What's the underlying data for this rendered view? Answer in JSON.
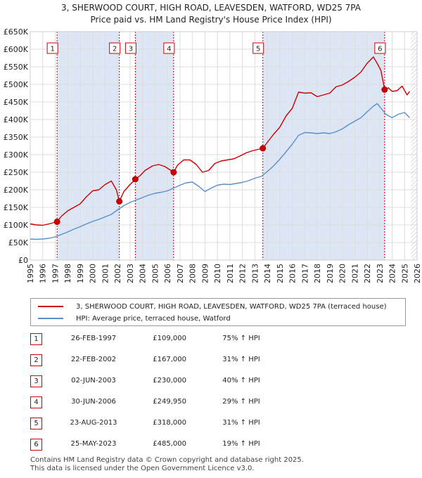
{
  "title_line1": "3, SHERWOOD COURT, HIGH ROAD, LEAVESDEN, WATFORD, WD25 7PA",
  "title_line2": "Price paid vs. HM Land Registry's House Price Index (HPI)",
  "colors": {
    "property": "#cc0000",
    "hpi": "#5b8fc9",
    "band": "#dde6f5",
    "grid": "#dddddd",
    "marker_border": "#cc0000"
  },
  "chart_data": {
    "type": "line",
    "title": "Price paid vs. HM Land Registry's House Price Index (HPI)",
    "xlabel": "",
    "ylabel": "",
    "xlim": [
      1995,
      2026
    ],
    "ylim": [
      0,
      650000
    ],
    "y_ticks": [
      0,
      50000,
      100000,
      150000,
      200000,
      250000,
      300000,
      350000,
      400000,
      450000,
      500000,
      550000,
      600000,
      650000
    ],
    "y_tick_labels": [
      "£0",
      "£50K",
      "£100K",
      "£150K",
      "£200K",
      "£250K",
      "£300K",
      "£350K",
      "£400K",
      "£450K",
      "£500K",
      "£550K",
      "£600K",
      "£650K"
    ],
    "x_ticks": [
      1995,
      1996,
      1997,
      1998,
      1999,
      2000,
      2001,
      2002,
      2003,
      2004,
      2005,
      2006,
      2007,
      2008,
      2009,
      2010,
      2011,
      2012,
      2013,
      2014,
      2015,
      2016,
      2017,
      2018,
      2019,
      2020,
      2021,
      2022,
      2023,
      2024,
      2025,
      2026
    ],
    "x_tick_labels": [
      "1995",
      "1996",
      "1997",
      "1998",
      "1999",
      "2000",
      "2001",
      "2002",
      "2003",
      "2004",
      "2005",
      "2006",
      "2007",
      "2008",
      "2009",
      "2010",
      "2011",
      "2012",
      "2013",
      "2014",
      "2015",
      "2016",
      "2017",
      "2018",
      "2019",
      "2020",
      "2021",
      "2022",
      "2023",
      "2024",
      "2025",
      "2026"
    ],
    "shaded_bands": [
      [
        1997.15,
        2002.14
      ],
      [
        2003.42,
        2006.49
      ],
      [
        2013.64,
        2023.4
      ]
    ],
    "hatched_region": [
      2025.5,
      2026
    ],
    "series": [
      {
        "name": "3, SHERWOOD COURT, HIGH ROAD, LEAVESDEN, WATFORD, WD25 7PA (terraced house)",
        "color": "#cc0000",
        "x": [
          1995,
          1995.5,
          1996,
          1996.5,
          1997.15,
          1997.5,
          1998,
          1998.5,
          1999,
          1999.5,
          2000,
          2000.5,
          2001,
          2001.5,
          2001.9,
          2002.14,
          2002.5,
          2003,
          2003.42,
          2003.8,
          2004.2,
          2004.8,
          2005.3,
          2005.8,
          2006.49,
          2006.8,
          2007.3,
          2007.8,
          2008.3,
          2008.8,
          2009.3,
          2009.8,
          2010.3,
          2010.8,
          2011.3,
          2011.8,
          2012.3,
          2012.8,
          2013.64,
          2014,
          2014.5,
          2015,
          2015.5,
          2016,
          2016.5,
          2017,
          2017.5,
          2018,
          2018.5,
          2019,
          2019.5,
          2020,
          2020.5,
          2021,
          2021.5,
          2022,
          2022.5,
          2022.8,
          2023.1,
          2023.4,
          2023.7,
          2024,
          2024.4,
          2024.8,
          2025.2,
          2025.4
        ],
        "y": [
          103000,
          100000,
          99000,
          103000,
          109000,
          125000,
          140000,
          150000,
          160000,
          180000,
          197000,
          200000,
          215000,
          225000,
          200000,
          167000,
          195000,
          215000,
          230000,
          240000,
          255000,
          268000,
          272000,
          266000,
          249950,
          270000,
          285000,
          285000,
          272000,
          250000,
          255000,
          275000,
          282000,
          285000,
          288000,
          296000,
          305000,
          311000,
          318000,
          335000,
          358000,
          378000,
          410000,
          432000,
          478000,
          475000,
          476000,
          465000,
          470000,
          475000,
          493000,
          498000,
          508000,
          520000,
          535000,
          560000,
          578000,
          560000,
          540000,
          485000,
          490000,
          480000,
          482000,
          495000,
          470000,
          480000
        ]
      },
      {
        "name": "HPI: Average price, terraced house, Watford",
        "color": "#5b8fc9",
        "x": [
          1995,
          1995.5,
          1996,
          1996.5,
          1997,
          1997.5,
          1998,
          1998.5,
          1999,
          1999.5,
          2000,
          2000.5,
          2001,
          2001.5,
          2002,
          2002.5,
          2003,
          2003.5,
          2004,
          2004.5,
          2005,
          2005.5,
          2006,
          2006.5,
          2007,
          2007.5,
          2008,
          2008.5,
          2009,
          2009.5,
          2010,
          2010.5,
          2011,
          2011.5,
          2012,
          2012.5,
          2013,
          2013.5,
          2014,
          2014.5,
          2015,
          2015.5,
          2016,
          2016.5,
          2017,
          2017.5,
          2018,
          2018.5,
          2019,
          2019.5,
          2020,
          2020.5,
          2021,
          2021.5,
          2022,
          2022.5,
          2022.8,
          2023,
          2023.5,
          2024,
          2024.5,
          2025,
          2025.4
        ],
        "y": [
          60000,
          59000,
          60000,
          62000,
          66000,
          73000,
          80000,
          88000,
          95000,
          103000,
          110000,
          116000,
          123000,
          130000,
          143000,
          155000,
          164000,
          171000,
          178000,
          185000,
          190000,
          193000,
          197000,
          205000,
          213000,
          220000,
          222000,
          210000,
          195000,
          205000,
          213000,
          216000,
          215000,
          218000,
          221000,
          226000,
          233000,
          238000,
          252000,
          268000,
          287000,
          308000,
          330000,
          355000,
          363000,
          362000,
          360000,
          362000,
          360000,
          365000,
          373000,
          385000,
          395000,
          405000,
          422000,
          438000,
          445000,
          437000,
          415000,
          405000,
          415000,
          420000,
          405000
        ]
      }
    ],
    "sale_markers": [
      {
        "label": "1",
        "x": 1997.15,
        "y": 109000
      },
      {
        "label": "2",
        "x": 2002.14,
        "y": 167000
      },
      {
        "label": "3",
        "x": 2003.42,
        "y": 230000
      },
      {
        "label": "4",
        "x": 2006.49,
        "y": 249950
      },
      {
        "label": "5",
        "x": 2013.64,
        "y": 318000
      },
      {
        "label": "6",
        "x": 2023.4,
        "y": 485000
      }
    ]
  },
  "legend": {
    "property_label": "3, SHERWOOD COURT, HIGH ROAD, LEAVESDEN, WATFORD, WD25 7PA (terraced house)",
    "hpi_label": "HPI: Average price, terraced house, Watford"
  },
  "sales": [
    {
      "num": "1",
      "date": "26-FEB-1997",
      "price": "£109,000",
      "hpi": "75% ↑ HPI"
    },
    {
      "num": "2",
      "date": "22-FEB-2002",
      "price": "£167,000",
      "hpi": "31% ↑ HPI"
    },
    {
      "num": "3",
      "date": "02-JUN-2003",
      "price": "£230,000",
      "hpi": "40% ↑ HPI"
    },
    {
      "num": "4",
      "date": "30-JUN-2006",
      "price": "£249,950",
      "hpi": "29% ↑ HPI"
    },
    {
      "num": "5",
      "date": "23-AUG-2013",
      "price": "£318,000",
      "hpi": "31% ↑ HPI"
    },
    {
      "num": "6",
      "date": "25-MAY-2023",
      "price": "£485,000",
      "hpi": "19% ↑ HPI"
    }
  ],
  "footer_line1": "Contains HM Land Registry data © Crown copyright and database right 2025.",
  "footer_line2": "This data is licensed under the Open Government Licence v3.0."
}
